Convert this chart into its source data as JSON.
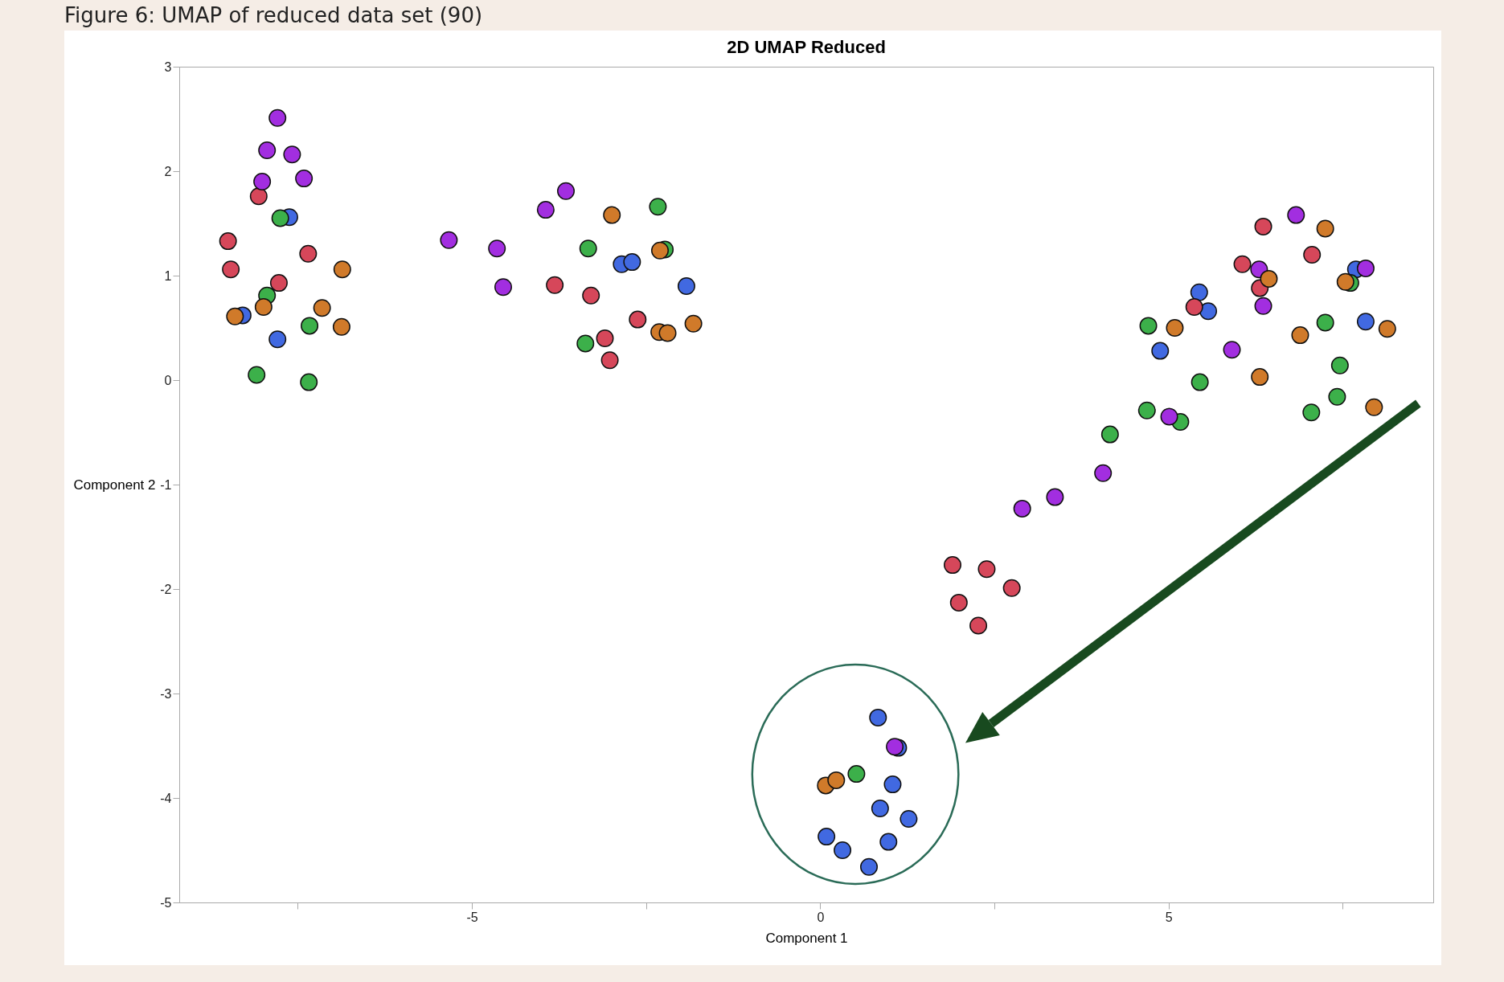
{
  "chart_data": {
    "type": "scatter",
    "title": "2D UMAP Reduced",
    "xlabel": "Component 1",
    "ylabel": "Component 2",
    "annotations": [
      "Figure 6: UMAP of reduced data set (90)"
    ],
    "xlim": [
      -9.2,
      8.8
    ],
    "ylim": [
      -5,
      3
    ],
    "xticks": [
      {
        "value": -7.5,
        "label": null
      },
      -5,
      {
        "value": -2.5,
        "label": null
      },
      0,
      {
        "value": 2.5,
        "label": null
      },
      5,
      {
        "value": 7.5,
        "label": null
      }
    ],
    "yticks": [
      -5,
      -4,
      -3,
      -2,
      -1,
      0,
      1,
      2,
      3
    ],
    "marker": "circle",
    "series": [
      {
        "color": "#4169e1",
        "x": [
          -7.62,
          -8.29,
          -7.79,
          -2.85,
          -2.7,
          -1.92,
          5.44,
          5.57,
          4.88,
          7.69,
          7.83,
          0.83,
          1.12,
          1.04,
          0.86,
          1.27,
          0.09,
          0.32,
          0.98,
          0.7
        ],
        "values": [
          1.56,
          0.62,
          0.39,
          1.11,
          1.13,
          0.9,
          0.84,
          0.66,
          0.28,
          1.06,
          0.56,
          -3.23,
          -3.52,
          -3.87,
          -4.1,
          -4.2,
          -4.37,
          -4.5,
          -4.42,
          -4.66
        ]
      },
      {
        "color": "#d6475a",
        "x": [
          -8.06,
          -8.5,
          -8.46,
          -7.35,
          -7.77,
          -3.81,
          -3.29,
          -3.09,
          -3.02,
          -2.62,
          6.36,
          6.06,
          6.31,
          5.37,
          7.06,
          1.9,
          2.39,
          2.75,
          1.99,
          2.27
        ],
        "values": [
          1.76,
          1.33,
          1.06,
          1.21,
          0.93,
          0.91,
          0.81,
          0.4,
          0.19,
          0.58,
          1.47,
          1.11,
          0.88,
          0.7,
          1.2,
          -1.77,
          -1.81,
          -1.99,
          -2.13,
          -2.35
        ]
      },
      {
        "color": "#3cb04a",
        "x": [
          -7.75,
          -7.94,
          -7.33,
          -8.09,
          -7.34,
          -3.33,
          -2.33,
          -2.23,
          -3.37,
          4.71,
          5.45,
          4.69,
          5.17,
          4.16,
          7.61,
          7.25,
          7.46,
          7.05,
          7.42,
          0.52
        ],
        "values": [
          1.55,
          0.81,
          0.52,
          0.05,
          -0.02,
          1.26,
          1.66,
          1.25,
          0.35,
          0.52,
          -0.02,
          -0.29,
          -0.4,
          -0.52,
          0.93,
          0.55,
          0.14,
          -0.31,
          -0.16,
          -3.77
        ]
      },
      {
        "color": "#a22ee0",
        "x": [
          -7.79,
          -7.94,
          -7.58,
          -8.01,
          -7.41,
          -5.33,
          -4.64,
          -4.55,
          -3.94,
          -3.65,
          6.83,
          7.83,
          6.3,
          6.36,
          5.91,
          5.01,
          4.06,
          3.37,
          2.9,
          1.07
        ],
        "values": [
          2.51,
          2.2,
          2.16,
          1.9,
          1.93,
          1.34,
          1.26,
          0.89,
          1.63,
          1.81,
          1.58,
          1.07,
          1.06,
          0.71,
          0.29,
          -0.35,
          -0.89,
          -1.12,
          -1.23,
          -3.51
        ]
      },
      {
        "color": "#d07a2a",
        "x": [
          -6.86,
          -7.15,
          -6.87,
          -7.99,
          -8.4,
          -2.99,
          -2.3,
          -1.82,
          -2.31,
          -2.19,
          7.25,
          6.44,
          7.54,
          5.09,
          6.89,
          6.31,
          8.14,
          7.95,
          0.08,
          0.23
        ],
        "values": [
          1.06,
          0.69,
          0.51,
          0.7,
          0.61,
          1.58,
          1.24,
          0.54,
          0.46,
          0.45,
          1.45,
          0.97,
          0.94,
          0.5,
          0.43,
          0.03,
          0.49,
          -0.26,
          -3.88,
          -3.83
        ]
      }
    ]
  }
}
